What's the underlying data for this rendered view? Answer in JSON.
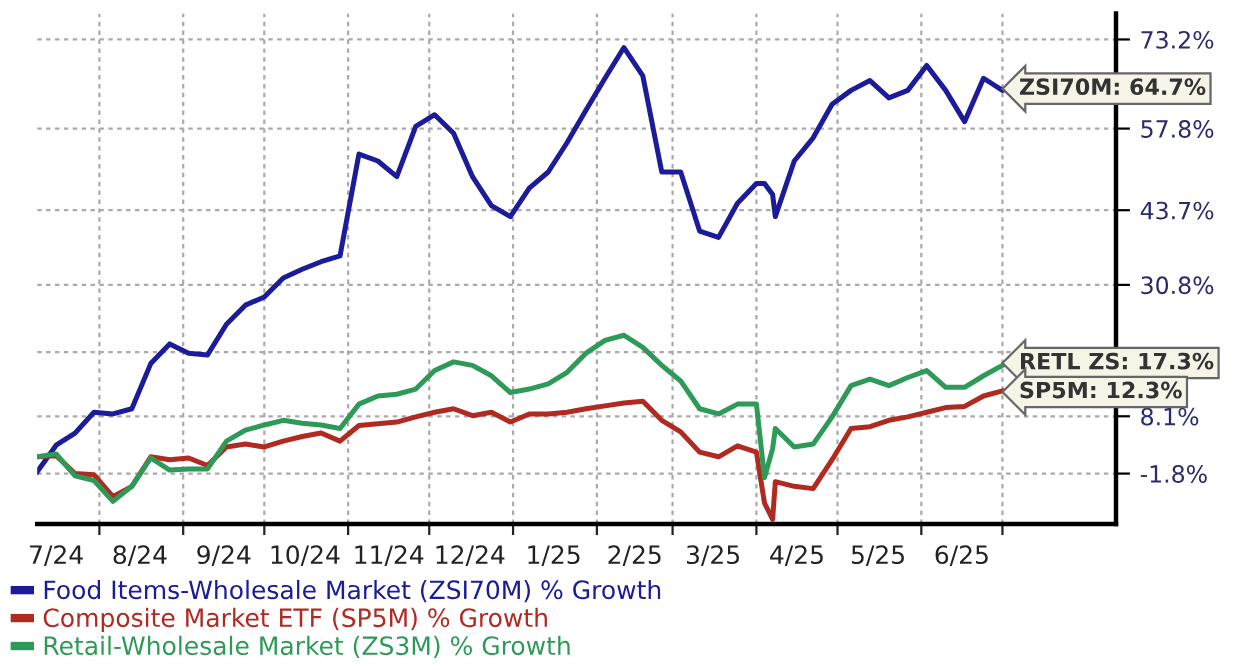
{
  "chart_data": {
    "type": "line",
    "grid": true,
    "legend": "bottom",
    "marker": "none",
    "line_style": "solid",
    "x": [
      "2024-07-09",
      "2024-07-16",
      "2024-07-23",
      "2024-07-30",
      "2024-08-06",
      "2024-08-13",
      "2024-08-20",
      "2024-08-27",
      "2024-09-03",
      "2024-09-10",
      "2024-09-17",
      "2024-09-24",
      "2024-10-01",
      "2024-10-08",
      "2024-10-15",
      "2024-10-22",
      "2024-10-29",
      "2024-11-05",
      "2024-11-12",
      "2024-11-19",
      "2024-11-26",
      "2024-12-03",
      "2024-12-10",
      "2024-12-17",
      "2024-12-24",
      "2024-12-31",
      "2025-01-07",
      "2025-01-14",
      "2025-01-21",
      "2025-01-28",
      "2025-02-04",
      "2025-02-11",
      "2025-02-18",
      "2025-02-25",
      "2025-03-04",
      "2025-03-11",
      "2025-03-18",
      "2025-03-25",
      "2025-04-01",
      "2025-04-04",
      "2025-04-07",
      "2025-04-08",
      "2025-04-15",
      "2025-04-22",
      "2025-04-29",
      "2025-05-06",
      "2025-05-13",
      "2025-05-20",
      "2025-05-27",
      "2025-06-03",
      "2025-06-10",
      "2025-06-17",
      "2025-06-24",
      "2025-07-01",
      "2025-07-03"
    ],
    "series": [
      {
        "name": "Food Items-Wholesale Market (ZSI70M) % Growth",
        "color": "#1c1c9a",
        "values": [
          -1.5,
          3.1,
          5.2,
          8.8,
          8.5,
          9.4,
          17.2,
          20.6,
          19.0,
          18.7,
          24.0,
          27.3,
          28.7,
          32.0,
          33.5,
          34.8,
          35.8,
          53.4,
          52.2,
          49.5,
          58.2,
          60.2,
          57.0,
          49.5,
          44.5,
          42.6,
          47.5,
          50.3,
          55.4,
          61.0,
          66.5,
          71.8,
          66.9,
          50.3,
          50.3,
          40.1,
          39.0,
          44.9,
          48.3,
          48.3,
          46.4,
          42.6,
          52.2,
          56.2,
          62.0,
          64.4,
          66.1,
          63.1,
          64.4,
          68.7,
          64.4,
          59.0,
          66.5,
          64.4,
          64.7
        ]
      },
      {
        "name": "Composite Market ETF (SP5M) % Growth",
        "color": "#b02a22",
        "values": [
          1.1,
          1.3,
          -1.8,
          -2.0,
          -5.8,
          -4.0,
          1.1,
          0.6,
          0.9,
          -0.4,
          2.8,
          3.3,
          2.8,
          3.8,
          4.6,
          5.2,
          3.8,
          6.5,
          6.8,
          7.1,
          8.0,
          8.8,
          9.4,
          8.2,
          8.8,
          7.1,
          8.5,
          8.5,
          8.8,
          9.4,
          9.9,
          10.4,
          10.7,
          7.4,
          5.4,
          1.9,
          1.1,
          3.0,
          1.9,
          -6.9,
          -9.7,
          -3.2,
          -4.0,
          -4.4,
          0.6,
          6.0,
          6.3,
          7.4,
          8.0,
          8.8,
          9.6,
          9.8,
          11.6,
          12.5,
          12.3
        ]
      },
      {
        "name": "Retail-Wholesale Market (ZS3M) % Growth",
        "color": "#2e9a58",
        "values": [
          1.1,
          1.6,
          -2.2,
          -3.0,
          -6.6,
          -4.0,
          0.9,
          -1.2,
          -1.0,
          -1.0,
          3.8,
          5.7,
          6.6,
          7.4,
          6.9,
          6.6,
          6.0,
          10.2,
          11.6,
          11.9,
          12.8,
          16.0,
          17.5,
          16.9,
          15.1,
          12.2,
          12.8,
          13.7,
          15.7,
          19.0,
          21.2,
          22.1,
          20.0,
          16.9,
          14.2,
          9.4,
          8.5,
          10.2,
          10.2,
          -2.5,
          2.5,
          6.0,
          2.8,
          3.3,
          8.0,
          13.4,
          14.5,
          13.4,
          14.8,
          16.0,
          13.1,
          13.1,
          15.1,
          16.9,
          17.3
        ]
      }
    ],
    "xlim": [
      "2024-07-09",
      "2025-08-12"
    ],
    "xticks": [
      {
        "value": "2024-07-16",
        "label": "7/24"
      },
      {
        "value": "2024-08-01",
        "label": null
      },
      {
        "value": "2024-08-16",
        "label": "8/24"
      },
      {
        "value": "2024-09-01",
        "label": null
      },
      {
        "value": "2024-09-16",
        "label": "9/24"
      },
      {
        "value": "2024-10-01",
        "label": null
      },
      {
        "value": "2024-10-16",
        "label": "10/24"
      },
      {
        "value": "2024-11-01",
        "label": null
      },
      {
        "value": "2024-11-16",
        "label": "11/24"
      },
      {
        "value": "2024-12-01",
        "label": null
      },
      {
        "value": "2024-12-16",
        "label": "12/24"
      },
      {
        "value": "2025-01-01",
        "label": null
      },
      {
        "value": "2025-01-16",
        "label": "1/25"
      },
      {
        "value": "2025-02-01",
        "label": null
      },
      {
        "value": "2025-02-15",
        "label": "2/25"
      },
      {
        "value": "2025-03-01",
        "label": null
      },
      {
        "value": "2025-03-16",
        "label": "3/25"
      },
      {
        "value": "2025-04-01",
        "label": null
      },
      {
        "value": "2025-04-16",
        "label": "4/25"
      },
      {
        "value": "2025-05-01",
        "label": null
      },
      {
        "value": "2025-05-16",
        "label": "5/25"
      },
      {
        "value": "2025-06-01",
        "label": null
      },
      {
        "value": "2025-06-16",
        "label": "6/25"
      },
      {
        "value": "2025-07-01",
        "label": null
      }
    ],
    "ylim": [
      -10.5,
      77.7
    ],
    "yticks": [
      {
        "value": 73.2,
        "label": "73.2%"
      },
      {
        "value": 57.8,
        "label": "57.8%"
      },
      {
        "value": 43.7,
        "label": "43.7%"
      },
      {
        "value": 30.8,
        "label": "30.8%"
      },
      {
        "value": 19.2,
        "label": null
      },
      {
        "value": 8.1,
        "label": "8.1%"
      },
      {
        "value": -1.8,
        "label": "-1.8%"
      }
    ],
    "annotations": [
      {
        "text": "ZSI70M: 64.7%",
        "x": "2025-07-03",
        "y": 64.7
      },
      {
        "text": "RETL ZS: 17.3%",
        "x": "2025-07-03",
        "y": 17.3
      },
      {
        "text": "SP5M: 12.3%",
        "x": "2025-07-03",
        "y": 12.3
      }
    ]
  }
}
